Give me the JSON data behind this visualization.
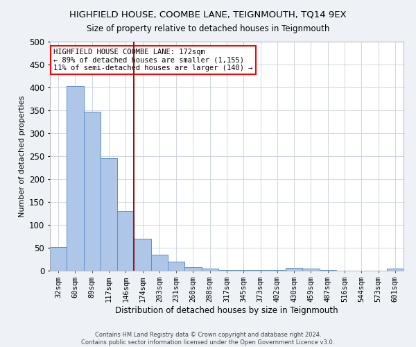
{
  "title": "HIGHFIELD HOUSE, COOMBE LANE, TEIGNMOUTH, TQ14 9EX",
  "subtitle": "Size of property relative to detached houses in Teignmouth",
  "xlabel": "Distribution of detached houses by size in Teignmouth",
  "ylabel": "Number of detached properties",
  "bar_color": "#aec6e8",
  "bar_edge_color": "#5b8fc9",
  "categories": [
    "32sqm",
    "60sqm",
    "89sqm",
    "117sqm",
    "146sqm",
    "174sqm",
    "203sqm",
    "231sqm",
    "260sqm",
    "288sqm",
    "317sqm",
    "345sqm",
    "373sqm",
    "402sqm",
    "430sqm",
    "459sqm",
    "487sqm",
    "516sqm",
    "544sqm",
    "573sqm",
    "601sqm"
  ],
  "values": [
    52,
    403,
    347,
    246,
    130,
    70,
    35,
    20,
    8,
    5,
    2,
    1,
    1,
    1,
    6,
    5,
    1,
    0,
    0,
    0,
    5
  ],
  "ylim": [
    0,
    500
  ],
  "yticks": [
    0,
    50,
    100,
    150,
    200,
    250,
    300,
    350,
    400,
    450,
    500
  ],
  "vline_index": 5,
  "vline_color": "#8b1a1a",
  "annotation_text": "HIGHFIELD HOUSE COOMBE LANE: 172sqm\n← 89% of detached houses are smaller (1,155)\n11% of semi-detached houses are larger (140) →",
  "annotation_box_color": "white",
  "annotation_box_edge_color": "red",
  "footer_line1": "Contains HM Land Registry data © Crown copyright and database right 2024.",
  "footer_line2": "Contains public sector information licensed under the Open Government Licence v3.0.",
  "background_color": "#eef2f7",
  "plot_background_color": "white",
  "grid_color": "#c8d0dc"
}
